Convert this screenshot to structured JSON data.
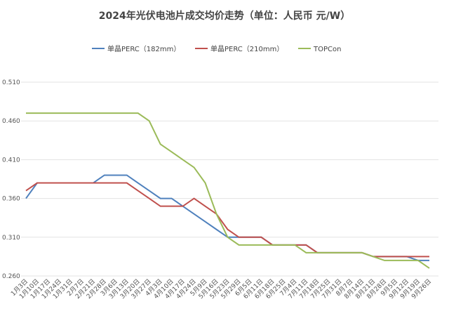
{
  "chart_data": {
    "type": "line",
    "title": "2024年光伏电池片成交均价走势（单位：人民币 元/W）",
    "categories": [
      "1月3日",
      "1月10日",
      "1月17日",
      "1月24日",
      "1月31日",
      "2月7日",
      "2月21日",
      "2月28日",
      "3月6日",
      "3月13日",
      "3月20日",
      "3月27日",
      "4月3日",
      "4月10日",
      "4月17日",
      "4月24日",
      "5月9日",
      "5月16日",
      "5月23日",
      "5月29日",
      "6月5日",
      "6月11日",
      "6月18日",
      "6月25日",
      "7月4日",
      "7月11日",
      "7月18日",
      "7月25日",
      "7月31日",
      "8月7日",
      "8月14日",
      "8月21日",
      "8月28日",
      "9月5日",
      "9月12日",
      "9月19日",
      "9月26日"
    ],
    "series": [
      {
        "name": "单晶PERC（182mm）",
        "color": "#4f81bd",
        "values": [
          0.36,
          0.38,
          0.38,
          0.38,
          0.38,
          0.38,
          0.38,
          0.39,
          0.39,
          0.39,
          0.38,
          0.37,
          0.36,
          0.36,
          0.35,
          0.34,
          0.33,
          0.32,
          0.31,
          0.31,
          0.31,
          0.31,
          0.3,
          0.3,
          0.3,
          0.3,
          0.29,
          0.29,
          0.29,
          0.29,
          0.29,
          0.285,
          0.285,
          0.285,
          0.285,
          0.28,
          0.28
        ]
      },
      {
        "name": "单晶PERC（210mm）",
        "color": "#c0504d",
        "values": [
          0.37,
          0.38,
          0.38,
          0.38,
          0.38,
          0.38,
          0.38,
          0.38,
          0.38,
          0.38,
          0.37,
          0.36,
          0.35,
          0.35,
          0.35,
          0.36,
          0.35,
          0.34,
          0.32,
          0.31,
          0.31,
          0.31,
          0.3,
          0.3,
          0.3,
          0.3,
          0.29,
          0.29,
          0.29,
          0.29,
          0.29,
          0.285,
          0.285,
          0.285,
          0.285,
          0.285,
          0.285
        ]
      },
      {
        "name": "TOPCon",
        "color": "#9bbb59",
        "values": [
          0.47,
          0.47,
          0.47,
          0.47,
          0.47,
          0.47,
          0.47,
          0.47,
          0.47,
          0.47,
          0.47,
          0.46,
          0.43,
          0.42,
          0.41,
          0.4,
          0.38,
          0.34,
          0.31,
          0.3,
          0.3,
          0.3,
          0.3,
          0.3,
          0.3,
          0.29,
          0.29,
          0.29,
          0.29,
          0.29,
          0.29,
          0.285,
          0.28,
          0.28,
          0.28,
          0.28,
          0.27
        ]
      }
    ],
    "ylim": [
      0.26,
      0.51
    ],
    "yticks": [
      {
        "value": 0.26,
        "label": "0.260"
      },
      {
        "value": 0.31,
        "label": "0.310"
      },
      {
        "value": 0.36,
        "label": "0.360"
      },
      {
        "value": 0.41,
        "label": "0.410"
      },
      {
        "value": 0.46,
        "label": "0.460"
      },
      {
        "value": 0.51,
        "label": "0.510"
      }
    ],
    "grid": true,
    "legend": "top"
  }
}
